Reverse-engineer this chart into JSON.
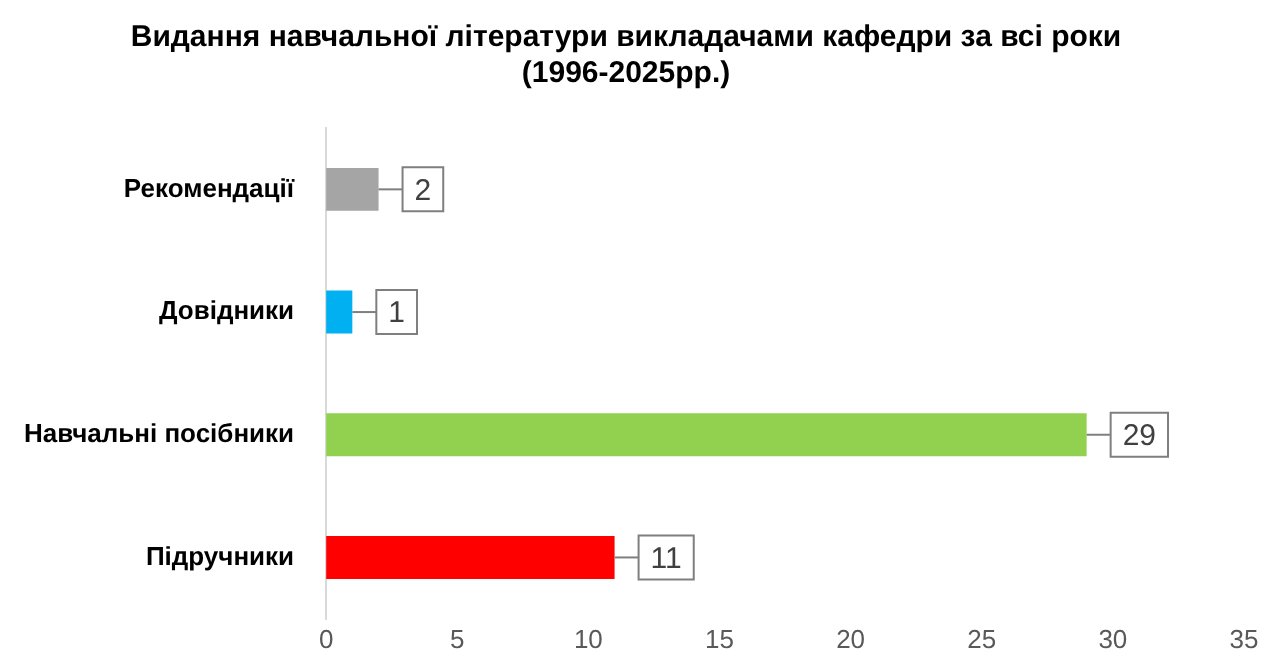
{
  "chart_data": {
    "type": "bar",
    "orientation": "horizontal",
    "title": "Видання навчальної літератури викладачами кафедри за всі роки\n(1996-2025рр.)",
    "categories": [
      "Рекомендації",
      "Довідники",
      "Навчальні посібники",
      "Підручники"
    ],
    "values": [
      2,
      1,
      29,
      11
    ],
    "colors": [
      "#a5a5a5",
      "#00b0f0",
      "#92d050",
      "#ff0000"
    ],
    "xlim": [
      0,
      35
    ],
    "xticks": [
      0,
      5,
      10,
      15,
      20,
      25,
      30,
      35
    ],
    "grid": false,
    "legend": false,
    "data_labels": true
  }
}
